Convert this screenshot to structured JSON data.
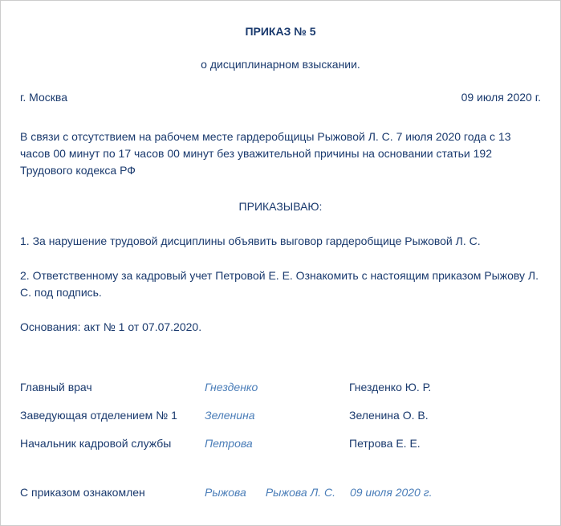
{
  "title": "ПРИКАЗ № 5",
  "subtitle": "о дисциплинарном взыскании.",
  "location": "г. Москва",
  "date": "09 июля 2020 г.",
  "body_text": "В связи с отсутствием на рабочем месте гардеробщицы Рыжовой Л. С. 7 июля 2020 года с 13 часов 00 минут по 17 часов 00 минут без уважительной причины на основании статьи 192 Трудового кодекса РФ",
  "command_title": "ПРИКАЗЫВАЮ:",
  "item1": "1. За нарушение трудовой дисциплины объявить выговор гардеробщице Рыжовой Л. С.",
  "item2": "2. Ответственному за кадровый учет Петровой Е. Е. Ознакомить с настоящим приказом Рыжову Л. С. под подпись.",
  "basis": "Основания: акт № 1 от 07.07.2020.",
  "signatures": [
    {
      "position": "Главный врач",
      "signature": "Гнезденко",
      "name": "Гнезденко Ю. Р."
    },
    {
      "position": "Заведующая отделением № 1",
      "signature": "Зеленина",
      "name": "Зеленина О. В."
    },
    {
      "position": "Начальник кадровой службы",
      "signature": "Петрова",
      "name": "Петрова Е. Е."
    }
  ],
  "acknowledgment": {
    "label": "С приказом ознакомлен",
    "signature": "Рыжова",
    "name": "Рыжова Л. С.",
    "date": "09 июля 2020 г."
  },
  "colors": {
    "text": "#1a3a6e",
    "signature": "#4a7db8",
    "background": "#ffffff"
  },
  "fontsize": 14
}
